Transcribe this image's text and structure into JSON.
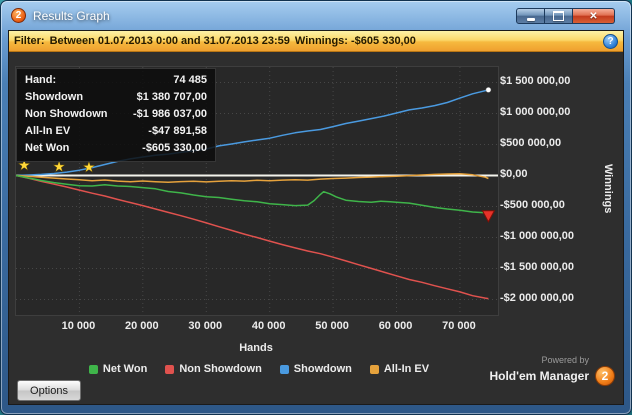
{
  "window": {
    "title": "Results Graph",
    "logo_text": "2",
    "close_glyph": "✕"
  },
  "filter": {
    "label": "Filter:",
    "range": "Between 01.07.2013 0:00 and 31.07.2013 23:59",
    "winnings": "Winnings: -$605 330,00",
    "help_glyph": "?"
  },
  "tooltip": {
    "rows": [
      {
        "label": "Hand:",
        "value": "74 485"
      },
      {
        "label": "Showdown",
        "value": "$1 380 707,00"
      },
      {
        "label": "Non Showdown",
        "value": "-$1 986 037,00"
      },
      {
        "label": "All-In EV",
        "value": "-$47 891,58"
      },
      {
        "label": "Net Won",
        "value": "-$605 330,00"
      }
    ]
  },
  "footer": {
    "options_label": "Options",
    "powered_by": "Powered by",
    "brand": "Hold'em Manager",
    "badge": "2"
  },
  "chart_data": {
    "type": "line",
    "xlabel": "Hands",
    "ylabel": "Winnings",
    "xlim": [
      0,
      76000
    ],
    "ylim": [
      -2250000,
      1750000
    ],
    "grid": true,
    "legend_position": "bottom",
    "x_ticks": [
      {
        "value": 10000,
        "label": "10 000"
      },
      {
        "value": 20000,
        "label": "20 000"
      },
      {
        "value": 30000,
        "label": "30 000"
      },
      {
        "value": 40000,
        "label": "40 000"
      },
      {
        "value": 50000,
        "label": "50 000"
      },
      {
        "value": 60000,
        "label": "60 000"
      },
      {
        "value": 70000,
        "label": "70 000"
      }
    ],
    "y_ticks": [
      {
        "value": 1500000,
        "label": "$1 500 000,00"
      },
      {
        "value": 1000000,
        "label": "$1 000 000,00"
      },
      {
        "value": 500000,
        "label": "$500 000,00"
      },
      {
        "value": 0,
        "label": "$0,00"
      },
      {
        "value": -500000,
        "label": "-$500 000,00"
      },
      {
        "value": -1000000,
        "label": "-$1 000 000,00"
      },
      {
        "value": -1500000,
        "label": "-$1 500 000,00"
      },
      {
        "value": -2000000,
        "label": "-$2 000 000,00"
      }
    ],
    "series": [
      {
        "name": "Net Won",
        "color": "#3fb54a",
        "final_value": -605330,
        "points": [
          [
            0,
            0
          ],
          [
            2000,
            -40000
          ],
          [
            4000,
            -80000
          ],
          [
            6000,
            -115000
          ],
          [
            8000,
            -140000
          ],
          [
            10000,
            -165000
          ],
          [
            12000,
            -170000
          ],
          [
            14000,
            -150000
          ],
          [
            16000,
            -170000
          ],
          [
            18000,
            -178000
          ],
          [
            20000,
            -195000
          ],
          [
            22000,
            -215000
          ],
          [
            24000,
            -258000
          ],
          [
            26000,
            -280000
          ],
          [
            28000,
            -315000
          ],
          [
            30000,
            -342000
          ],
          [
            32000,
            -355000
          ],
          [
            34000,
            -382000
          ],
          [
            36000,
            -408000
          ],
          [
            38000,
            -425000
          ],
          [
            40000,
            -455000
          ],
          [
            42000,
            -470000
          ],
          [
            44000,
            -485000
          ],
          [
            46000,
            -478000
          ],
          [
            47000,
            -405000
          ],
          [
            48000,
            -305000
          ],
          [
            48500,
            -262000
          ],
          [
            49500,
            -295000
          ],
          [
            50500,
            -345000
          ],
          [
            52000,
            -398000
          ],
          [
            54000,
            -420000
          ],
          [
            56000,
            -432000
          ],
          [
            57500,
            -415000
          ],
          [
            59000,
            -425000
          ],
          [
            60000,
            -432000
          ],
          [
            62000,
            -445000
          ],
          [
            64000,
            -480000
          ],
          [
            66000,
            -515000
          ],
          [
            68000,
            -540000
          ],
          [
            70000,
            -562000
          ],
          [
            72000,
            -588000
          ],
          [
            74000,
            -601000
          ],
          [
            74485,
            -605330
          ]
        ]
      },
      {
        "name": "Non Showdown",
        "color": "#e0524e",
        "final_value": -1986037,
        "points": [
          [
            0,
            0
          ],
          [
            2000,
            -45000
          ],
          [
            4000,
            -95000
          ],
          [
            6000,
            -140000
          ],
          [
            8000,
            -185000
          ],
          [
            10000,
            -235000
          ],
          [
            12000,
            -285000
          ],
          [
            14000,
            -330000
          ],
          [
            16000,
            -385000
          ],
          [
            18000,
            -435000
          ],
          [
            20000,
            -485000
          ],
          [
            22000,
            -540000
          ],
          [
            24000,
            -595000
          ],
          [
            26000,
            -648000
          ],
          [
            28000,
            -705000
          ],
          [
            30000,
            -765000
          ],
          [
            32000,
            -825000
          ],
          [
            34000,
            -885000
          ],
          [
            36000,
            -945000
          ],
          [
            38000,
            -1000000
          ],
          [
            40000,
            -1058000
          ],
          [
            42000,
            -1115000
          ],
          [
            44000,
            -1168000
          ],
          [
            46000,
            -1218000
          ],
          [
            48000,
            -1262000
          ],
          [
            50000,
            -1318000
          ],
          [
            52000,
            -1378000
          ],
          [
            54000,
            -1438000
          ],
          [
            56000,
            -1498000
          ],
          [
            58000,
            -1558000
          ],
          [
            60000,
            -1618000
          ],
          [
            62000,
            -1678000
          ],
          [
            64000,
            -1722000
          ],
          [
            66000,
            -1778000
          ],
          [
            68000,
            -1828000
          ],
          [
            70000,
            -1878000
          ],
          [
            72000,
            -1938000
          ],
          [
            74000,
            -1978000
          ],
          [
            74485,
            -1986037
          ]
        ]
      },
      {
        "name": "Showdown",
        "color": "#4a9ae0",
        "final_value": 1380707,
        "points": [
          [
            0,
            0
          ],
          [
            2000,
            8000
          ],
          [
            4000,
            18000
          ],
          [
            6000,
            32000
          ],
          [
            8000,
            55000
          ],
          [
            10000,
            85000
          ],
          [
            12000,
            128000
          ],
          [
            14000,
            178000
          ],
          [
            16000,
            228000
          ],
          [
            18000,
            268000
          ],
          [
            20000,
            298000
          ],
          [
            22000,
            328000
          ],
          [
            24000,
            345000
          ],
          [
            26000,
            372000
          ],
          [
            28000,
            398000
          ],
          [
            30000,
            428000
          ],
          [
            32000,
            478000
          ],
          [
            34000,
            508000
          ],
          [
            36000,
            542000
          ],
          [
            38000,
            572000
          ],
          [
            40000,
            602000
          ],
          [
            42000,
            648000
          ],
          [
            44000,
            688000
          ],
          [
            46000,
            718000
          ],
          [
            48000,
            742000
          ],
          [
            50000,
            788000
          ],
          [
            52000,
            838000
          ],
          [
            54000,
            878000
          ],
          [
            56000,
            918000
          ],
          [
            58000,
            958000
          ],
          [
            60000,
            1008000
          ],
          [
            62000,
            1058000
          ],
          [
            64000,
            1088000
          ],
          [
            66000,
            1128000
          ],
          [
            68000,
            1178000
          ],
          [
            70000,
            1248000
          ],
          [
            72000,
            1318000
          ],
          [
            74000,
            1368000
          ],
          [
            74485,
            1380707
          ]
        ]
      },
      {
        "name": "All-In EV",
        "color": "#e6a23c",
        "final_value": -47892,
        "points": [
          [
            0,
            0
          ],
          [
            2000,
            -12000
          ],
          [
            4000,
            -28000
          ],
          [
            6000,
            -42000
          ],
          [
            8000,
            -56000
          ],
          [
            10000,
            -70000
          ],
          [
            12000,
            -85000
          ],
          [
            14000,
            -72000
          ],
          [
            16000,
            -90000
          ],
          [
            18000,
            -100000
          ],
          [
            20000,
            -88000
          ],
          [
            22000,
            -100000
          ],
          [
            24000,
            -110000
          ],
          [
            26000,
            -98000
          ],
          [
            28000,
            -92000
          ],
          [
            30000,
            -104000
          ],
          [
            32000,
            -94000
          ],
          [
            34000,
            -84000
          ],
          [
            36000,
            -90000
          ],
          [
            38000,
            -78000
          ],
          [
            40000,
            -86000
          ],
          [
            42000,
            -74000
          ],
          [
            44000,
            -68000
          ],
          [
            46000,
            -74000
          ],
          [
            48000,
            -58000
          ],
          [
            50000,
            -48000
          ],
          [
            52000,
            -42000
          ],
          [
            54000,
            -32000
          ],
          [
            56000,
            -26000
          ],
          [
            58000,
            -18000
          ],
          [
            60000,
            -12000
          ],
          [
            62000,
            -2000
          ],
          [
            64000,
            8000
          ],
          [
            66000,
            18000
          ],
          [
            68000,
            24000
          ],
          [
            70000,
            28000
          ],
          [
            72000,
            12000
          ],
          [
            74000,
            -28000
          ],
          [
            74485,
            -47892
          ]
        ]
      }
    ],
    "markers": {
      "star_glyph": "★",
      "stars": [
        [
          1300,
          150000
        ],
        [
          6800,
          130000
        ],
        [
          11500,
          118000
        ]
      ],
      "triangle": [
        74485,
        -650000
      ],
      "end_dot": [
        74485,
        1380707
      ]
    }
  }
}
